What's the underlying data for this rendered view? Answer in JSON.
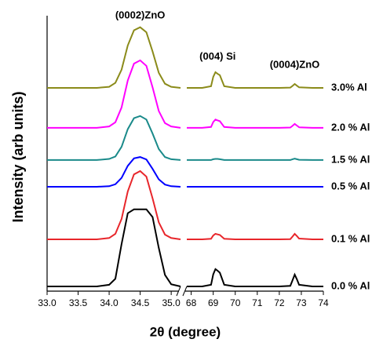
{
  "chart_data": {
    "type": "line",
    "x_label": "2θ (degree)",
    "y_label": "Intensity (arb units)",
    "ylim": [
      0,
      100
    ],
    "annotations": [
      {
        "text": "(0002)ZnO",
        "x": 34.5,
        "y": 100,
        "panel": 0
      },
      {
        "text": "(004) Si",
        "x": 69.2,
        "y": 85,
        "panel": 1
      },
      {
        "text": "(0004)ZnO",
        "x": 72.7,
        "y": 82,
        "panel": 1
      }
    ],
    "panels": [
      {
        "xlim": [
          33.0,
          35.15
        ],
        "xticks": [
          {
            "value": 33,
            "label": "33.0"
          },
          33.5,
          {
            "value": 34,
            "label": "34.0"
          },
          34.5,
          {
            "value": 35,
            "label": "35.0"
          }
        ],
        "x": [
          33.0,
          33.2,
          33.4,
          33.6,
          33.8,
          34.0,
          34.1,
          34.2,
          34.3,
          34.4,
          34.5,
          34.6,
          34.7,
          34.8,
          34.9,
          35.0,
          35.15
        ]
      },
      {
        "xlim": [
          67.8,
          74
        ],
        "xticks": [
          68,
          69,
          70,
          71,
          72,
          73,
          74
        ],
        "x": [
          67.8,
          68.5,
          68.9,
          69.0,
          69.1,
          69.2,
          69.3,
          69.5,
          70.0,
          72.0,
          72.5,
          72.6,
          72.7,
          72.8,
          72.9,
          73.5,
          74.0
        ]
      }
    ],
    "series": [
      {
        "name": "3.0% Al",
        "color": "#8b8b1a",
        "values": [
          [
            73.8,
            73.8,
            73.8,
            73.8,
            73.8,
            74.2,
            75.6,
            80.4,
            89.2,
            94.7,
            95.8,
            94.0,
            87.0,
            79.3,
            75.3,
            74.2,
            73.8
          ],
          [
            73.8,
            73.8,
            74.4,
            77.8,
            79.5,
            78.9,
            78.4,
            74.4,
            73.8,
            73.8,
            73.9,
            74.5,
            75.2,
            74.6,
            74.0,
            73.8,
            73.8
          ]
        ]
      },
      {
        "name": "2.0 % Al",
        "color": "#ff00ff",
        "values": [
          [
            59.3,
            59.3,
            59.3,
            59.3,
            59.3,
            59.8,
            61.3,
            66.7,
            76.5,
            82.6,
            83.8,
            81.8,
            74.0,
            65.4,
            61.0,
            59.8,
            59.3
          ],
          [
            59.3,
            59.3,
            59.6,
            61.4,
            62.3,
            62.0,
            61.7,
            59.6,
            59.3,
            59.3,
            59.4,
            60.0,
            60.7,
            60.1,
            59.5,
            59.3,
            59.3
          ]
        ]
      },
      {
        "name": "1.5 % Al",
        "color": "#1a8a8a",
        "values": [
          [
            47.6,
            47.6,
            47.6,
            47.6,
            47.6,
            48.0,
            48.9,
            52.4,
            58.8,
            62.8,
            63.6,
            62.3,
            57.2,
            51.6,
            48.7,
            47.9,
            47.6
          ],
          [
            47.6,
            47.6,
            47.6,
            47.9,
            48.0,
            48.0,
            47.9,
            47.6,
            47.6,
            47.6,
            47.6,
            47.9,
            48.1,
            47.9,
            47.7,
            47.6,
            47.6
          ]
        ]
      },
      {
        "name": "0.5 % Al",
        "color": "#0000ff",
        "values": [
          [
            37.9,
            37.9,
            37.9,
            37.9,
            37.9,
            38.1,
            38.8,
            41.1,
            45.5,
            48.2,
            48.7,
            47.8,
            44.4,
            40.6,
            38.7,
            38.1,
            37.9
          ],
          [
            37.9,
            37.9,
            37.9,
            37.9,
            37.9,
            37.9,
            37.9,
            37.9,
            37.9,
            37.9,
            37.9,
            37.9,
            37.9,
            37.9,
            37.9,
            37.9,
            37.9
          ]
        ]
      },
      {
        "name": "0.1 % Al",
        "color": "#e8262b",
        "values": [
          [
            18.8,
            18.8,
            18.8,
            18.8,
            18.8,
            19.3,
            20.8,
            26.2,
            36.2,
            42.4,
            43.6,
            41.6,
            33.7,
            25.0,
            20.5,
            19.3,
            18.8
          ],
          [
            18.8,
            18.8,
            19.0,
            20.2,
            20.8,
            20.6,
            20.4,
            19.0,
            18.8,
            18.8,
            18.9,
            19.8,
            20.8,
            20.0,
            19.1,
            18.8,
            18.8
          ]
        ]
      },
      {
        "name": "0.0 % Al",
        "color": "#000000",
        "values": [
          [
            1.7,
            1.7,
            1.7,
            1.7,
            1.7,
            2.3,
            4.5,
            17.1,
            28.3,
            29.7,
            29.7,
            29.7,
            26.9,
            15.7,
            5.9,
            2.5,
            1.7
          ],
          [
            1.7,
            1.7,
            2.3,
            6.1,
            8.0,
            7.4,
            6.7,
            2.3,
            1.7,
            1.7,
            1.9,
            3.9,
            6.0,
            4.3,
            2.3,
            1.7,
            1.7
          ]
        ]
      }
    ]
  }
}
